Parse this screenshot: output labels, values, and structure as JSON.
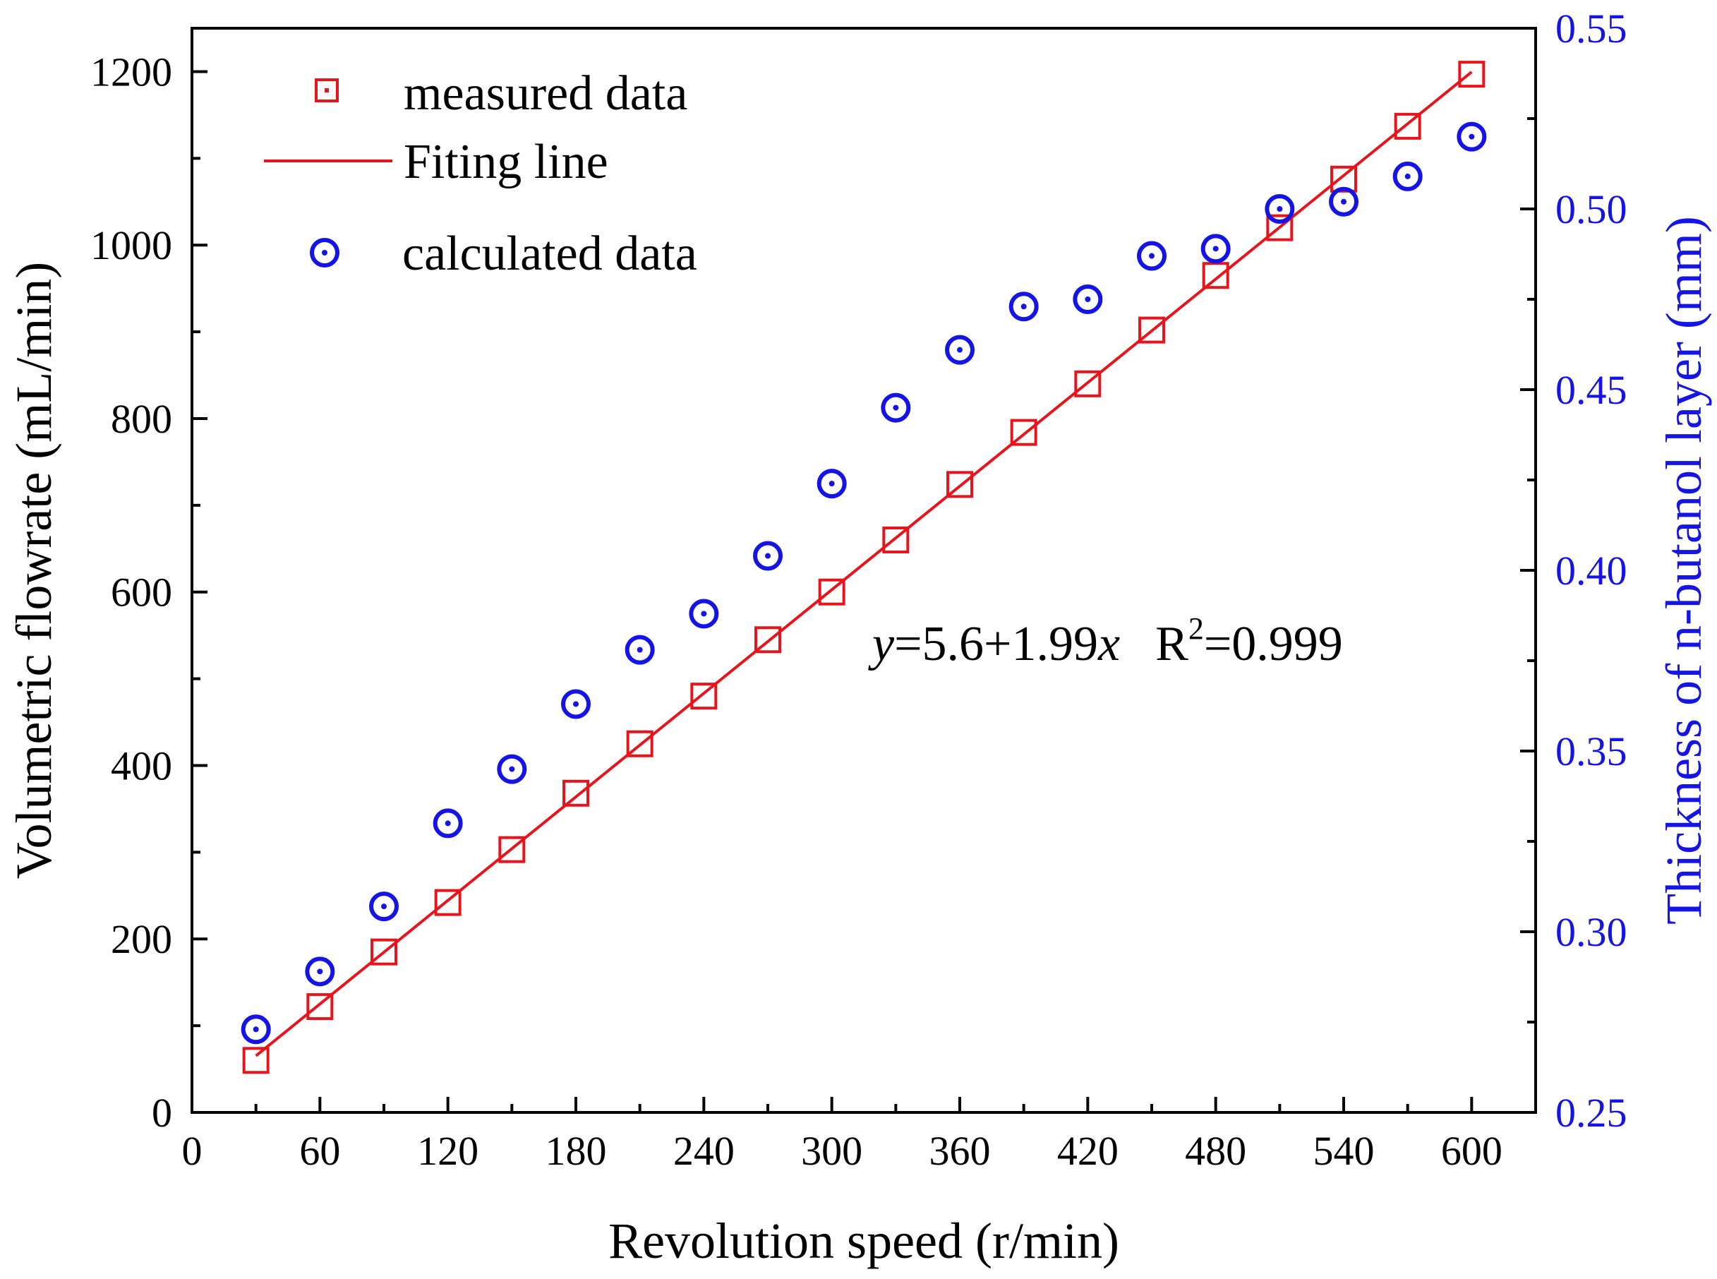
{
  "chart_data": {
    "type": "scatter",
    "xlabel": "Revolution speed (r/min)",
    "ylabel_left": "Volumetric flowrate (mL/min)",
    "ylabel_right": "Thickness of n-butanol layer (mm)",
    "xlim": [
      0,
      630
    ],
    "ylim_left": [
      0,
      1250
    ],
    "ylim_right": [
      0.25,
      0.55
    ],
    "x_ticks": [
      "0",
      "60",
      "120",
      "180",
      "240",
      "300",
      "360",
      "420",
      "480",
      "540",
      "600"
    ],
    "y_left_ticks": [
      "0",
      "200",
      "400",
      "600",
      "800",
      "1000",
      "1200"
    ],
    "y_right_ticks": [
      "0.25",
      "0.30",
      "0.35",
      "0.40",
      "0.45",
      "0.50",
      "0.55"
    ],
    "legend_position": "top-left",
    "series": [
      {
        "name": "measured data",
        "axis": "left",
        "marker": "square",
        "color": "#e8141c",
        "x": [
          30,
          60,
          90,
          120,
          150,
          180,
          210,
          240,
          270,
          300,
          330,
          360,
          390,
          420,
          450,
          480,
          510,
          540,
          570,
          600
        ],
        "y": [
          60,
          122,
          185,
          242,
          303,
          368,
          425,
          480,
          545,
          600,
          660,
          724,
          784,
          840,
          902,
          965,
          1020,
          1076,
          1137,
          1197
        ]
      },
      {
        "name": "Fiting line",
        "axis": "left",
        "marker": "line",
        "color": "#e8141c",
        "intercept": 5.6,
        "slope": 1.99,
        "x_range": [
          30,
          600
        ]
      },
      {
        "name": "calculated data",
        "axis": "right",
        "marker": "circle-dot",
        "color": "#1414e6",
        "x": [
          30,
          60,
          90,
          120,
          150,
          180,
          210,
          240,
          270,
          300,
          330,
          360,
          390,
          420,
          450,
          480,
          510,
          540,
          570,
          600
        ],
        "y": [
          0.273,
          0.289,
          0.307,
          0.33,
          0.345,
          0.363,
          0.378,
          0.388,
          0.404,
          0.424,
          0.445,
          0.461,
          0.473,
          0.475,
          0.487,
          0.489,
          0.5,
          0.502,
          0.509,
          0.52
        ]
      }
    ],
    "annotation": {
      "y_var": "y",
      "eq_mid": "=5.6+1.99",
      "x_var": "x",
      "r_label": "R",
      "r_sup": "2",
      "r_value": "=0.999"
    }
  },
  "colors": {
    "measured": "#e8141c",
    "calculated": "#1414e6",
    "axis": "#000000",
    "right_axis_text": "#1414e6"
  }
}
